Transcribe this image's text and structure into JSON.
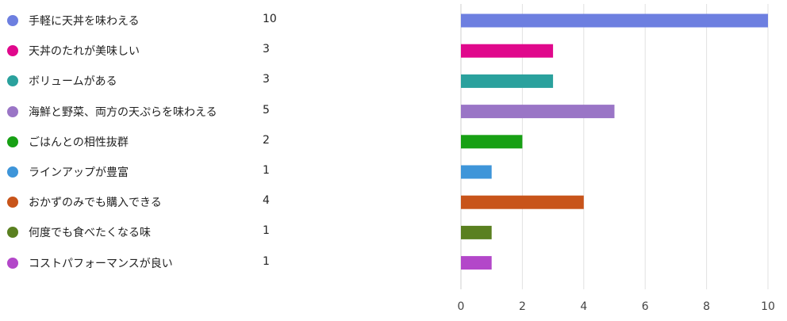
{
  "chart_data": {
    "type": "bar",
    "orientation": "horizontal",
    "categories": [
      "手軽に天丼を味わえる",
      "天丼のたれが美味しい",
      "ボリュームがある",
      "海鮮と野菜、両方の天ぷらを味わえる",
      "ごはんとの相性抜群",
      "ラインアップが豊富",
      "おかずのみでも購入できる",
      "何度でも食べたくなる味",
      "コストパフォーマンスが良い"
    ],
    "values": [
      10,
      3,
      3,
      5,
      2,
      1,
      4,
      1,
      1
    ],
    "colors": [
      "#6d7fe0",
      "#e0088c",
      "#2aa19d",
      "#9a75c6",
      "#17a014",
      "#3e95d9",
      "#c8541a",
      "#5a8020",
      "#b347c9"
    ],
    "xlim": [
      0,
      10
    ],
    "xticks": [
      0,
      2,
      4,
      6,
      8,
      10
    ],
    "grid": true,
    "legend": "left"
  }
}
